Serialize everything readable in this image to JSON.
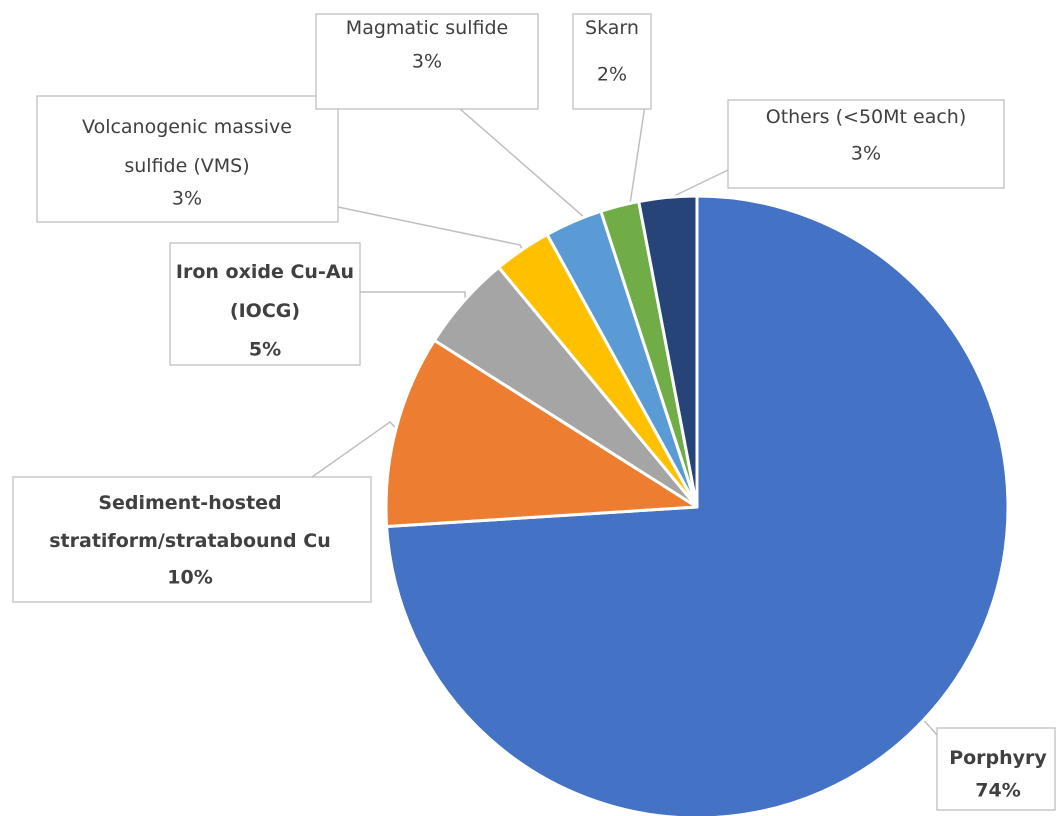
{
  "chart_data": {
    "type": "pie",
    "categories": [
      "Porphyry",
      "Sediment-hosted stratiform/stratabound Cu",
      "Iron oxide Cu-Au (IOCG)",
      "Volcanogenic massive sulfide (VMS)",
      "Magmatic sulfide",
      "Skarn",
      "Others (<50Mt each)"
    ],
    "values": [
      74,
      10,
      5,
      3,
      3,
      2,
      3
    ],
    "value_labels": [
      "74%",
      "10%",
      "5%",
      "3%",
      "3%",
      "2%",
      "3%"
    ],
    "colors": [
      "#4472c4",
      "#ed7d31",
      "#a5a5a5",
      "#ffc000",
      "#5b9bd5",
      "#70ad47",
      "#264478"
    ]
  }
}
